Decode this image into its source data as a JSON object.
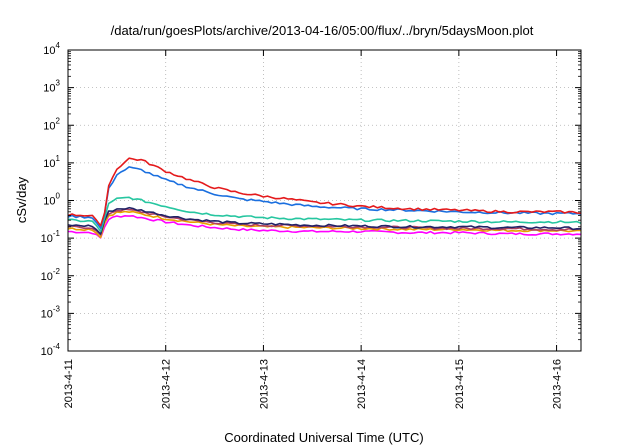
{
  "chart_data": {
    "type": "line",
    "title": "/data/run/goesPlots/archive/2013-04-16/05:00/flux/../bryn/5daysMoon.plot",
    "xlabel": "Coordinated Universal Time (UTC)",
    "ylabel": "cSv/day",
    "yscale": "log",
    "ylim": [
      0.0001,
      10000
    ],
    "y_ticks": [
      {
        "exp": "-4",
        "value": 0.0001
      },
      {
        "exp": "-3",
        "value": 0.001
      },
      {
        "exp": "-2",
        "value": 0.01
      },
      {
        "exp": "-1",
        "value": 0.1
      },
      {
        "exp": "0",
        "value": 1
      },
      {
        "exp": "1",
        "value": 10
      },
      {
        "exp": "2",
        "value": 100
      },
      {
        "exp": "3",
        "value": 1000
      },
      {
        "exp": "4",
        "value": 10000
      }
    ],
    "y_tick_base": "10",
    "xlim": [
      "2013-04-11T00:00",
      "2013-04-16T06:00"
    ],
    "x_ticks": [
      "2013-4-11",
      "2013-4-12",
      "2013-4-13",
      "2013-4-14",
      "2013-4-15",
      "2013-4-16"
    ],
    "grid": true,
    "legend": "none",
    "series": [
      {
        "color": "#e41a1c",
        "points": [
          [
            "2013-04-11T00:00",
            0.42
          ],
          [
            "2013-04-11T06:00",
            0.4
          ],
          [
            "2013-04-11T08:00",
            0.2
          ],
          [
            "2013-04-11T09:00",
            0.5
          ],
          [
            "2013-04-11T10:00",
            2.5
          ],
          [
            "2013-04-11T12:00",
            7
          ],
          [
            "2013-04-11T15:00",
            13
          ],
          [
            "2013-04-11T18:00",
            12
          ],
          [
            "2013-04-12T00:00",
            6
          ],
          [
            "2013-04-12T06:00",
            3.5
          ],
          [
            "2013-04-12T12:00",
            2.2
          ],
          [
            "2013-04-12T18:00",
            1.6
          ],
          [
            "2013-04-13T00:00",
            1.3
          ],
          [
            "2013-04-13T06:00",
            1.1
          ],
          [
            "2013-04-13T12:00",
            0.9
          ],
          [
            "2013-04-13T18:00",
            0.8
          ],
          [
            "2013-04-14T00:00",
            0.7
          ],
          [
            "2013-04-14T12:00",
            0.6
          ],
          [
            "2013-04-15T00:00",
            0.55
          ],
          [
            "2013-04-15T12:00",
            0.5
          ],
          [
            "2013-04-16T00:00",
            0.5
          ],
          [
            "2013-04-16T06:00",
            0.48
          ]
        ]
      },
      {
        "color": "#1a6fdf",
        "points": [
          [
            "2013-04-11T00:00",
            0.38
          ],
          [
            "2013-04-11T06:00",
            0.36
          ],
          [
            "2013-04-11T08:00",
            0.18
          ],
          [
            "2013-04-11T09:00",
            0.45
          ],
          [
            "2013-04-11T10:00",
            2
          ],
          [
            "2013-04-11T12:00",
            5
          ],
          [
            "2013-04-11T15:00",
            7.5
          ],
          [
            "2013-04-11T18:00",
            6.5
          ],
          [
            "2013-04-12T00:00",
            3.5
          ],
          [
            "2013-04-12T06:00",
            2.2
          ],
          [
            "2013-04-12T12:00",
            1.5
          ],
          [
            "2013-04-12T18:00",
            1.1
          ],
          [
            "2013-04-13T00:00",
            0.95
          ],
          [
            "2013-04-13T06:00",
            0.8
          ],
          [
            "2013-04-13T12:00",
            0.7
          ],
          [
            "2013-04-13T18:00",
            0.65
          ],
          [
            "2013-04-14T00:00",
            0.6
          ],
          [
            "2013-04-14T12:00",
            0.55
          ],
          [
            "2013-04-15T00:00",
            0.5
          ],
          [
            "2013-04-15T12:00",
            0.47
          ],
          [
            "2013-04-16T00:00",
            0.45
          ],
          [
            "2013-04-16T06:00",
            0.45
          ]
        ]
      },
      {
        "color": "#26c6a0",
        "points": [
          [
            "2013-04-11T00:00",
            0.3
          ],
          [
            "2013-04-11T06:00",
            0.28
          ],
          [
            "2013-04-11T08:00",
            0.15
          ],
          [
            "2013-04-11T09:00",
            0.35
          ],
          [
            "2013-04-11T10:00",
            0.8
          ],
          [
            "2013-04-11T12:00",
            1.1
          ],
          [
            "2013-04-11T15:00",
            1.2
          ],
          [
            "2013-04-11T18:00",
            1.0
          ],
          [
            "2013-04-12T00:00",
            0.7
          ],
          [
            "2013-04-12T06:00",
            0.5
          ],
          [
            "2013-04-12T12:00",
            0.42
          ],
          [
            "2013-04-12T18:00",
            0.38
          ],
          [
            "2013-04-13T00:00",
            0.35
          ],
          [
            "2013-04-13T12:00",
            0.32
          ],
          [
            "2013-04-14T00:00",
            0.3
          ],
          [
            "2013-04-14T12:00",
            0.29
          ],
          [
            "2013-04-15T00:00",
            0.28
          ],
          [
            "2013-04-15T12:00",
            0.27
          ],
          [
            "2013-04-16T00:00",
            0.27
          ],
          [
            "2013-04-16T06:00",
            0.26
          ]
        ]
      },
      {
        "color": "#222266",
        "points": [
          [
            "2013-04-11T00:00",
            0.22
          ],
          [
            "2013-04-11T06:00",
            0.21
          ],
          [
            "2013-04-11T08:00",
            0.13
          ],
          [
            "2013-04-11T09:00",
            0.3
          ],
          [
            "2013-04-11T10:00",
            0.5
          ],
          [
            "2013-04-11T12:00",
            0.6
          ],
          [
            "2013-04-11T15:00",
            0.62
          ],
          [
            "2013-04-11T18:00",
            0.55
          ],
          [
            "2013-04-12T00:00",
            0.4
          ],
          [
            "2013-04-12T06:00",
            0.32
          ],
          [
            "2013-04-12T12:00",
            0.28
          ],
          [
            "2013-04-12T18:00",
            0.25
          ],
          [
            "2013-04-13T00:00",
            0.24
          ],
          [
            "2013-04-13T12:00",
            0.22
          ],
          [
            "2013-04-14T00:00",
            0.21
          ],
          [
            "2013-04-14T12:00",
            0.2
          ],
          [
            "2013-04-15T00:00",
            0.2
          ],
          [
            "2013-04-15T12:00",
            0.19
          ],
          [
            "2013-04-16T00:00",
            0.19
          ],
          [
            "2013-04-16T06:00",
            0.18
          ]
        ]
      },
      {
        "color": "#b04060",
        "points": [
          [
            "2013-04-11T00:00",
            0.2
          ],
          [
            "2013-04-11T06:00",
            0.19
          ],
          [
            "2013-04-11T08:00",
            0.12
          ],
          [
            "2013-04-11T09:00",
            0.28
          ],
          [
            "2013-04-11T10:00",
            0.45
          ],
          [
            "2013-04-11T12:00",
            0.55
          ],
          [
            "2013-04-11T15:00",
            0.56
          ],
          [
            "2013-04-11T18:00",
            0.5
          ],
          [
            "2013-04-12T00:00",
            0.37
          ],
          [
            "2013-04-12T06:00",
            0.3
          ],
          [
            "2013-04-12T12:00",
            0.26
          ],
          [
            "2013-04-12T18:00",
            0.23
          ],
          [
            "2013-04-13T00:00",
            0.22
          ],
          [
            "2013-04-13T12:00",
            0.21
          ],
          [
            "2013-04-14T00:00",
            0.2
          ],
          [
            "2013-04-14T12:00",
            0.19
          ],
          [
            "2013-04-15T00:00",
            0.18
          ],
          [
            "2013-04-15T12:00",
            0.18
          ],
          [
            "2013-04-16T00:00",
            0.17
          ],
          [
            "2013-04-16T06:00",
            0.17
          ]
        ]
      },
      {
        "color": "#e8a000",
        "points": [
          [
            "2013-04-11T00:00",
            0.18
          ],
          [
            "2013-04-11T06:00",
            0.17
          ],
          [
            "2013-04-11T08:00",
            0.11
          ],
          [
            "2013-04-11T09:00",
            0.25
          ],
          [
            "2013-04-11T10:00",
            0.4
          ],
          [
            "2013-04-11T12:00",
            0.48
          ],
          [
            "2013-04-11T15:00",
            0.5
          ],
          [
            "2013-04-11T18:00",
            0.44
          ],
          [
            "2013-04-12T00:00",
            0.33
          ],
          [
            "2013-04-12T06:00",
            0.27
          ],
          [
            "2013-04-12T12:00",
            0.23
          ],
          [
            "2013-04-12T18:00",
            0.21
          ],
          [
            "2013-04-13T00:00",
            0.2
          ],
          [
            "2013-04-13T12:00",
            0.19
          ],
          [
            "2013-04-14T00:00",
            0.18
          ],
          [
            "2013-04-14T12:00",
            0.17
          ],
          [
            "2013-04-15T00:00",
            0.17
          ],
          [
            "2013-04-15T12:00",
            0.16
          ],
          [
            "2013-04-16T00:00",
            0.16
          ],
          [
            "2013-04-16T06:00",
            0.15
          ]
        ]
      },
      {
        "color": "#ff00ff",
        "points": [
          [
            "2013-04-11T00:00",
            0.15
          ],
          [
            "2013-04-11T06:00",
            0.14
          ],
          [
            "2013-04-11T08:00",
            0.1
          ],
          [
            "2013-04-11T09:00",
            0.2
          ],
          [
            "2013-04-11T10:00",
            0.32
          ],
          [
            "2013-04-11T12:00",
            0.38
          ],
          [
            "2013-04-11T15:00",
            0.4
          ],
          [
            "2013-04-11T18:00",
            0.35
          ],
          [
            "2013-04-12T00:00",
            0.27
          ],
          [
            "2013-04-12T06:00",
            0.22
          ],
          [
            "2013-04-12T12:00",
            0.19
          ],
          [
            "2013-04-12T18:00",
            0.17
          ],
          [
            "2013-04-13T00:00",
            0.16
          ],
          [
            "2013-04-13T12:00",
            0.15
          ],
          [
            "2013-04-14T00:00",
            0.15
          ],
          [
            "2013-04-14T12:00",
            0.14
          ],
          [
            "2013-04-15T00:00",
            0.14
          ],
          [
            "2013-04-15T12:00",
            0.13
          ],
          [
            "2013-04-16T00:00",
            0.13
          ],
          [
            "2013-04-16T06:00",
            0.13
          ]
        ]
      }
    ]
  }
}
